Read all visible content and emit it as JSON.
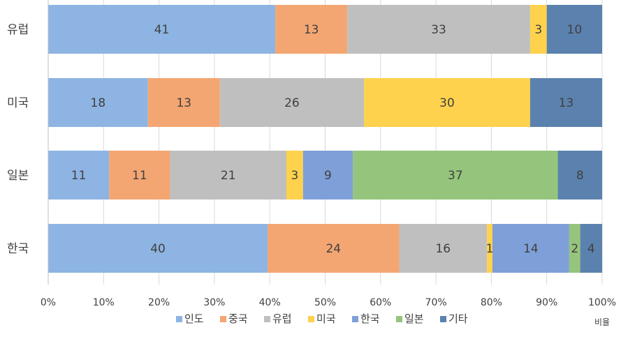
{
  "chart_data": {
    "type": "bar",
    "orientation": "horizontal",
    "stacked": "percent",
    "categories": [
      "유럽",
      "미국",
      "일본",
      "한국"
    ],
    "series": [
      {
        "name": "인도",
        "color": "#8DB4E2",
        "values": [
          41,
          18,
          11,
          40
        ]
      },
      {
        "name": "중국",
        "color": "#F4A672",
        "values": [
          13,
          13,
          11,
          24
        ]
      },
      {
        "name": "유럽",
        "color": "#BFBFBF",
        "values": [
          33,
          26,
          21,
          16
        ]
      },
      {
        "name": "미국",
        "color": "#FFD24D",
        "values": [
          3,
          30,
          3,
          1
        ]
      },
      {
        "name": "한국",
        "color": "#7F9FD8",
        "values": [
          0,
          0,
          9,
          14
        ]
      },
      {
        "name": "일본",
        "color": "#95C57C",
        "values": [
          0,
          0,
          37,
          2
        ]
      },
      {
        "name": "기타",
        "color": "#5B82AE",
        "values": [
          10,
          13,
          8,
          4
        ]
      }
    ],
    "xlim": [
      0,
      100
    ],
    "x_ticks": [
      "0%",
      "10%",
      "20%",
      "30%",
      "40%",
      "50%",
      "60%",
      "70%",
      "80%",
      "90%",
      "100%"
    ],
    "xlabel": "비율",
    "legend_position": "bottom",
    "grid": "vertical"
  }
}
